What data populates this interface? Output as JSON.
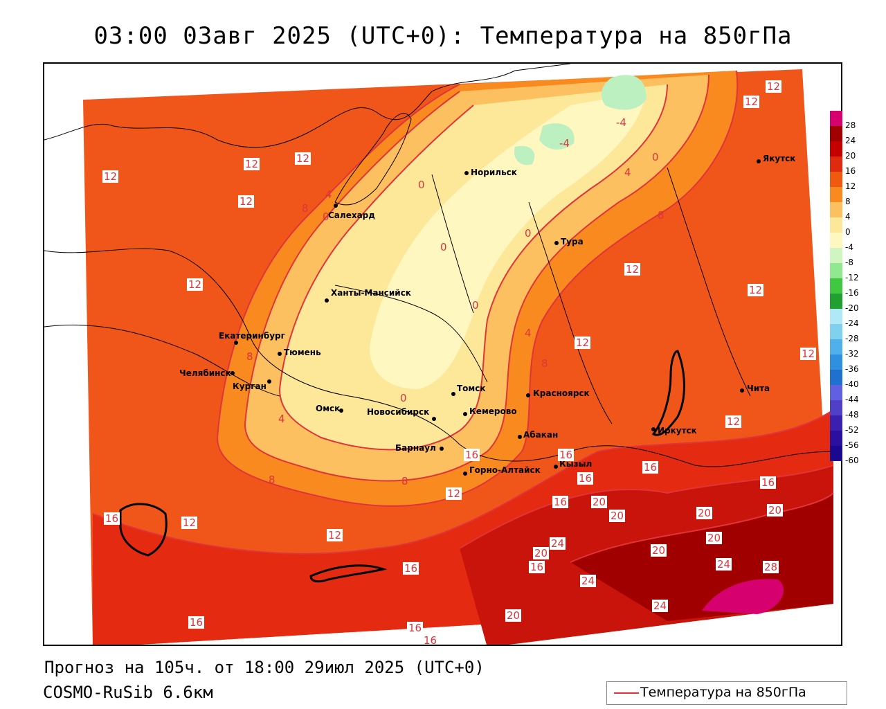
{
  "title": "03:00 03авг 2025 (UTC+0): Температура на 850гПа",
  "footer": {
    "forecast": "Прогноз на 105ч. от 18:00 29июл 2025 (UTC+0)",
    "model": "COSMO-RuSib 6.6км"
  },
  "legend": {
    "label": "Температура на 850гПа",
    "color": "#e0343a"
  },
  "scale": {
    "labels": [
      "28",
      "24",
      "20",
      "16",
      "12",
      "8",
      "4",
      "0",
      "-4",
      "-8",
      "-12",
      "-16",
      "-20",
      "-24",
      "-28",
      "-32",
      "-36",
      "-40",
      "-44",
      "-48",
      "-52",
      "-56",
      "-60"
    ],
    "colors": [
      "#d6006e",
      "#a00000",
      "#c40000",
      "#e02a10",
      "#f05a10",
      "#f88a20",
      "#fcc060",
      "#fde89a",
      "#fff6c0",
      "#d0f5c0",
      "#90e890",
      "#40c840",
      "#20a030",
      "#b0e8f8",
      "#80d0f0",
      "#50b0ec",
      "#3090e0",
      "#2070d0",
      "#6060e0",
      "#5040c8",
      "#3a20b0",
      "#2a10a0",
      "#1a0890"
    ]
  },
  "cities": [
    {
      "name": "Норильск"
    },
    {
      "name": "Якутск"
    },
    {
      "name": "Салехард"
    },
    {
      "name": "Тура"
    },
    {
      "name": "Ханты-Мансийск"
    },
    {
      "name": "Екатеринбург"
    },
    {
      "name": "Тюмень"
    },
    {
      "name": "Челябинск"
    },
    {
      "name": "Курган"
    },
    {
      "name": "Омск"
    },
    {
      "name": "Новосибирск"
    },
    {
      "name": "Томск"
    },
    {
      "name": "Кемерово"
    },
    {
      "name": "Красноярск"
    },
    {
      "name": "Барнаул"
    },
    {
      "name": "Абакан"
    },
    {
      "name": "Горно-Алтайск"
    },
    {
      "name": "Кызыл"
    },
    {
      "name": "Иркутск"
    },
    {
      "name": "Чита"
    }
  ],
  "contour_labels": [
    "12",
    "12",
    "12",
    "12",
    "12",
    "12",
    "12",
    "12",
    "12",
    "12",
    "12",
    "12",
    "12",
    "12",
    "12",
    "8",
    "8",
    "8",
    "8",
    "8",
    "8",
    "4",
    "4",
    "4",
    "4",
    "0",
    "0",
    "0",
    "0",
    "0",
    "0",
    "0",
    "-4",
    "-4",
    "16",
    "16",
    "16",
    "16",
    "16",
    "16",
    "16",
    "16",
    "16",
    "16",
    "16",
    "16",
    "20",
    "20",
    "20",
    "20",
    "20",
    "20",
    "20",
    "20",
    "24",
    "24",
    "24",
    "24",
    "28"
  ]
}
